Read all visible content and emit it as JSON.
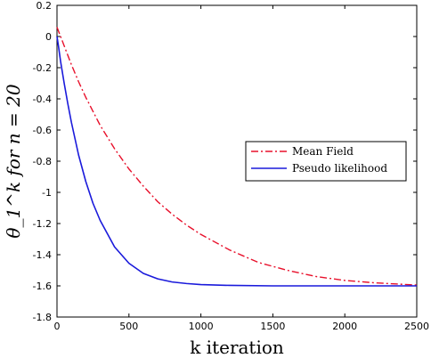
{
  "chart_data": {
    "type": "line",
    "xlabel": "k iteration",
    "ylabel": "θ_1^k for n = 20",
    "xlim": [
      0,
      2500
    ],
    "ylim": [
      -1.8,
      0.2
    ],
    "xticks": [
      0,
      500,
      1000,
      1500,
      2000,
      2500
    ],
    "yticks": [
      0.2,
      0,
      -0.2,
      -0.4,
      -0.6,
      -0.8,
      -1,
      -1.2,
      -1.4,
      -1.6,
      -1.8
    ],
    "xtick_labels": [
      "0",
      "500",
      "1000",
      "1500",
      "2000",
      "2500"
    ],
    "ytick_labels": [
      "0.2",
      "0",
      "-0.2",
      "-0.4",
      "-0.6",
      "-0.8",
      "-1",
      "-1.2",
      "-1.4",
      "-1.6",
      "-1.8"
    ],
    "grid": false,
    "legend_position": "right",
    "series": [
      {
        "name": "Mean Field",
        "color": "#e8102b",
        "style": "dashdot",
        "x": [
          0,
          25,
          50,
          100,
          150,
          200,
          300,
          400,
          500,
          600,
          700,
          800,
          900,
          1000,
          1200,
          1400,
          1600,
          1800,
          2000,
          2200,
          2400,
          2500
        ],
        "y": [
          0.06,
          0.0,
          -0.06,
          -0.18,
          -0.29,
          -0.39,
          -0.57,
          -0.72,
          -0.85,
          -0.96,
          -1.06,
          -1.14,
          -1.21,
          -1.27,
          -1.37,
          -1.45,
          -1.5,
          -1.54,
          -1.565,
          -1.58,
          -1.59,
          -1.595
        ]
      },
      {
        "name": "Pseudo likelihood",
        "color": "#1a1adb",
        "style": "solid",
        "x": [
          0,
          10,
          25,
          50,
          75,
          100,
          150,
          200,
          250,
          300,
          400,
          500,
          600,
          700,
          800,
          900,
          1000,
          1200,
          1500,
          2000,
          2500
        ],
        "y": [
          0.0,
          -0.06,
          -0.16,
          -0.3,
          -0.43,
          -0.55,
          -0.76,
          -0.93,
          -1.07,
          -1.18,
          -1.35,
          -1.455,
          -1.52,
          -1.555,
          -1.575,
          -1.585,
          -1.592,
          -1.597,
          -1.6,
          -1.6,
          -1.6
        ]
      }
    ]
  }
}
